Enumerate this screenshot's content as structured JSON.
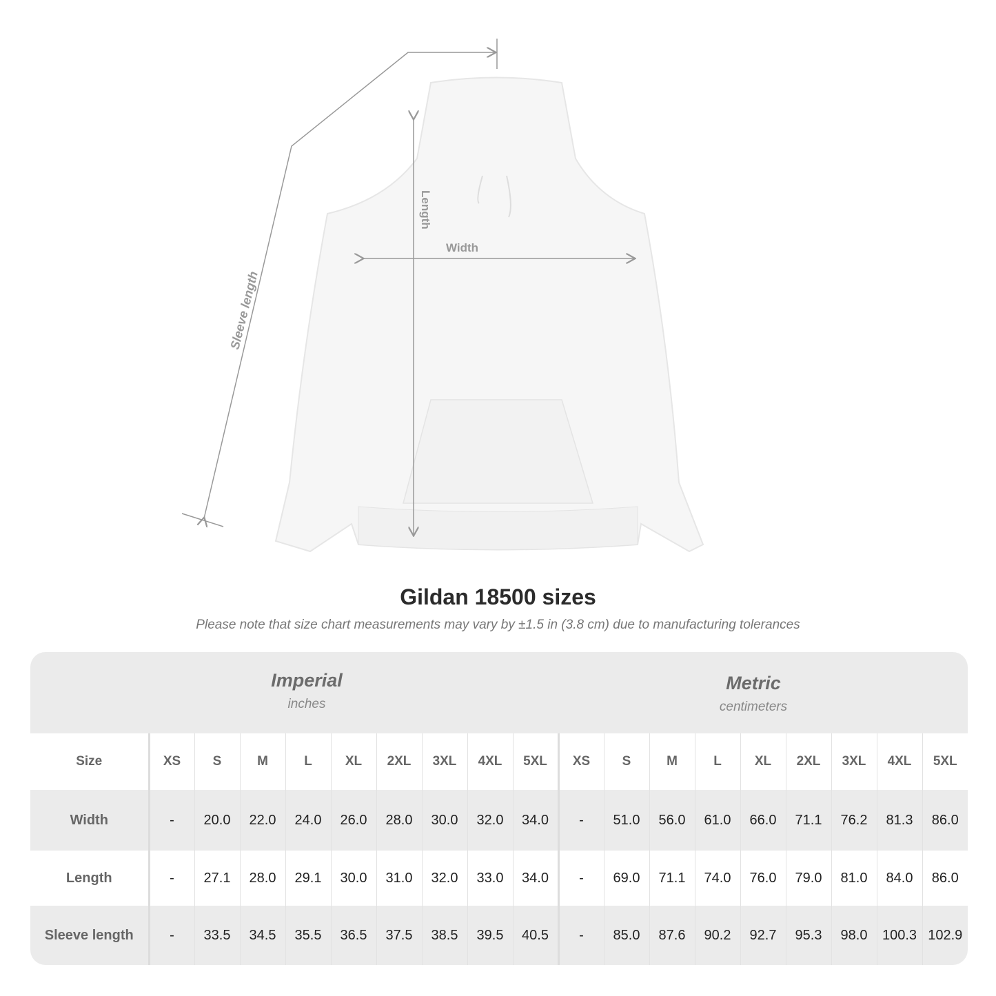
{
  "diagram": {
    "labels": {
      "length": "Length",
      "width": "Width",
      "sleeve": "Sleeve length"
    }
  },
  "title": "Gildan 18500 sizes",
  "note": "Please note that size chart measurements may vary by ±1.5 in (3.8 cm) due to manufacturing tolerances",
  "table": {
    "imperial": {
      "name": "Imperial",
      "unit": "inches"
    },
    "metric": {
      "name": "Metric",
      "unit": "centimeters"
    },
    "size_label": "Size",
    "sizes": [
      "XS",
      "S",
      "M",
      "L",
      "XL",
      "2XL",
      "3XL",
      "4XL",
      "5XL"
    ],
    "rows": [
      {
        "label": "Width",
        "imperial": [
          "-",
          "20.0",
          "22.0",
          "24.0",
          "26.0",
          "28.0",
          "30.0",
          "32.0",
          "34.0"
        ],
        "metric": [
          "-",
          "51.0",
          "56.0",
          "61.0",
          "66.0",
          "71.1",
          "76.2",
          "81.3",
          "86.0"
        ]
      },
      {
        "label": "Length",
        "imperial": [
          "-",
          "27.1",
          "28.0",
          "29.1",
          "30.0",
          "31.0",
          "32.0",
          "33.0",
          "34.0"
        ],
        "metric": [
          "-",
          "69.0",
          "71.1",
          "74.0",
          "76.0",
          "79.0",
          "81.0",
          "84.0",
          "86.0"
        ]
      },
      {
        "label": "Sleeve length",
        "imperial": [
          "-",
          "33.5",
          "34.5",
          "35.5",
          "36.5",
          "37.5",
          "38.5",
          "39.5",
          "40.5"
        ],
        "metric": [
          "-",
          "85.0",
          "87.6",
          "90.2",
          "92.7",
          "95.3",
          "98.0",
          "100.3",
          "102.9"
        ]
      }
    ]
  }
}
